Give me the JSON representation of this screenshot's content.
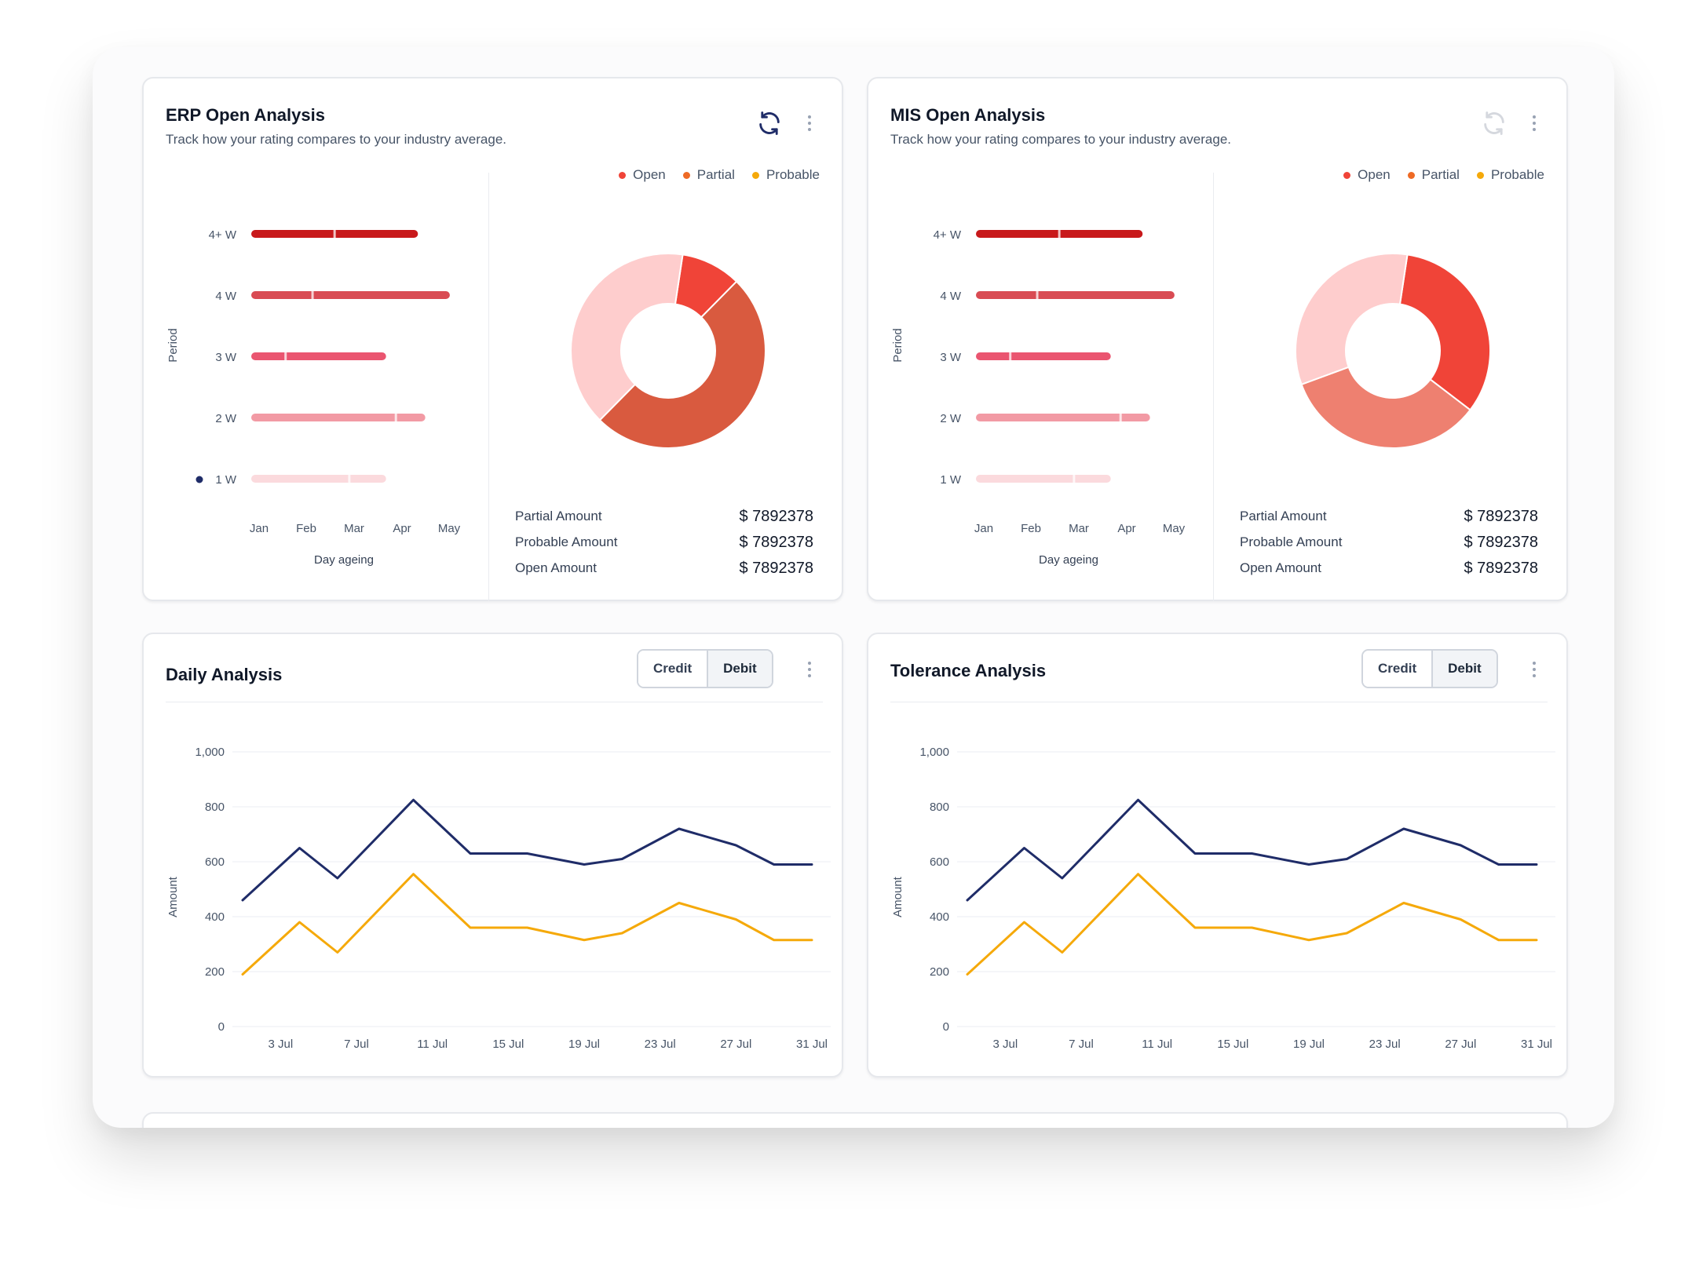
{
  "colors": {
    "open": "#f04438",
    "partial": "#ee6a25",
    "probable": "#f5a90a",
    "navy": "#1f2c68",
    "orange_line": "#f5a90a"
  },
  "erp": {
    "title": "ERP Open Analysis",
    "subtitle": "Track how your rating compares to your industry average.",
    "icons": {
      "refresh": "refresh-icon",
      "menu": "more-vertical-icon"
    },
    "legend": [
      {
        "label": "Open",
        "color": "#f04438"
      },
      {
        "label": "Partial",
        "color": "#ee6a25"
      },
      {
        "label": "Probable",
        "color": "#f5a90a"
      }
    ],
    "amounts": [
      {
        "label": "Partial Amount",
        "value": "$ 7892378"
      },
      {
        "label": "Probable Amount",
        "value": "$ 7892378"
      },
      {
        "label": "Open Amount",
        "value": "$ 7892378"
      }
    ]
  },
  "mis": {
    "title": "MIS Open Analysis",
    "subtitle": "Track how your rating compares to your industry average.",
    "icons": {
      "refresh": "refresh-icon",
      "menu": "more-vertical-icon"
    },
    "legend": [
      {
        "label": "Open",
        "color": "#f04438"
      },
      {
        "label": "Partial",
        "color": "#ee6a25"
      },
      {
        "label": "Probable",
        "color": "#f5a90a"
      }
    ],
    "amounts": [
      {
        "label": "Partial Amount",
        "value": "$ 7892378"
      },
      {
        "label": "Probable Amount",
        "value": "$ 7892378"
      },
      {
        "label": "Open Amount",
        "value": "$ 7892378"
      }
    ]
  },
  "daily": {
    "title": "Daily Analysis",
    "credit_label": "Credit",
    "debit_label": "Debit"
  },
  "tolerance": {
    "title": "Tolerance Analysis",
    "credit_label": "Credit",
    "debit_label": "Debit"
  },
  "chart_data": [
    {
      "chart": "erp-period-bars",
      "type": "bar",
      "orientation": "horizontal",
      "ylabel": "Period",
      "xlabel": "Day ageing",
      "categories": [
        "4+ W",
        "4 W",
        "3 W",
        "2 W",
        "1 W"
      ],
      "x_ticks": [
        "Jan",
        "Feb",
        "Mar",
        "Apr",
        "May"
      ],
      "xlim": [
        0,
        4.5
      ],
      "series": [
        {
          "values": [
            3.4,
            4.05,
            2.75,
            3.55,
            2.75
          ],
          "markers": [
            1.7,
            1.25,
            0.7,
            2.95,
            2.0
          ],
          "colors": [
            "#c8191b",
            "#d94b53",
            "#ea5570",
            "#f29aa4",
            "#fbdadd"
          ]
        }
      ],
      "selected_marker": "1 W"
    },
    {
      "chart": "erp-donut",
      "type": "pie",
      "donut": true,
      "labels": [
        "Open",
        "Partial",
        "Probable"
      ],
      "values": [
        10,
        50,
        40
      ],
      "colors": [
        "#f04438",
        "#d95a3f",
        "#fecdcd"
      ]
    },
    {
      "chart": "mis-period-bars",
      "type": "bar",
      "orientation": "horizontal",
      "ylabel": "Period",
      "xlabel": "Day ageing",
      "categories": [
        "4+ W",
        "4 W",
        "3 W",
        "2 W",
        "1 W"
      ],
      "x_ticks": [
        "Jan",
        "Feb",
        "Mar",
        "Apr",
        "May"
      ],
      "xlim": [
        0,
        4.5
      ],
      "series": [
        {
          "values": [
            3.4,
            4.05,
            2.75,
            3.55,
            2.75
          ],
          "markers": [
            1.7,
            1.25,
            0.7,
            2.95,
            2.0
          ],
          "colors": [
            "#c8191b",
            "#d94b53",
            "#ea5570",
            "#f29aa4",
            "#fbdadd"
          ]
        }
      ]
    },
    {
      "chart": "mis-donut",
      "type": "pie",
      "donut": true,
      "labels": [
        "Open",
        "Partial",
        "Probable"
      ],
      "values": [
        33,
        34,
        33
      ],
      "colors": [
        "#f04438",
        "#ee8070",
        "#fecdcd"
      ]
    },
    {
      "chart": "daily-line",
      "type": "line",
      "ylabel": "Amount",
      "ylim": [
        0,
        1000
      ],
      "y_ticks": [
        0,
        200,
        400,
        600,
        800,
        1000
      ],
      "x_ticks": [
        "3 Jul",
        "7 Jul",
        "11 Jul",
        "15 Jul",
        "19 Jul",
        "23 Jul",
        "27 Jul",
        "31 Jul"
      ],
      "x": [
        "1 Jul",
        "4 Jul",
        "6 Jul",
        "10 Jul",
        "13 Jul",
        "16 Jul",
        "19 Jul",
        "21 Jul",
        "24 Jul",
        "27 Jul",
        "29 Jul",
        "31 Jul"
      ],
      "series": [
        {
          "color": "#1f2c68",
          "values": [
            460,
            650,
            540,
            825,
            630,
            630,
            590,
            610,
            720,
            660,
            590,
            590
          ]
        },
        {
          "color": "#f5a90a",
          "values": [
            190,
            380,
            270,
            555,
            360,
            360,
            315,
            340,
            450,
            390,
            315,
            315
          ]
        }
      ]
    },
    {
      "chart": "tolerance-line",
      "type": "line",
      "ylabel": "Amount",
      "ylim": [
        0,
        1000
      ],
      "y_ticks": [
        0,
        200,
        400,
        600,
        800,
        1000
      ],
      "x_ticks": [
        "3 Jul",
        "7 Jul",
        "11 Jul",
        "15 Jul",
        "19 Jul",
        "23 Jul",
        "27 Jul",
        "31 Jul"
      ],
      "x": [
        "1 Jul",
        "4 Jul",
        "6 Jul",
        "10 Jul",
        "13 Jul",
        "16 Jul",
        "19 Jul",
        "21 Jul",
        "24 Jul",
        "27 Jul",
        "29 Jul",
        "31 Jul"
      ],
      "series": [
        {
          "color": "#1f2c68",
          "values": [
            460,
            650,
            540,
            825,
            630,
            630,
            590,
            610,
            720,
            660,
            590,
            590
          ]
        },
        {
          "color": "#f5a90a",
          "values": [
            190,
            380,
            270,
            555,
            360,
            360,
            315,
            340,
            450,
            390,
            315,
            315
          ]
        }
      ]
    }
  ]
}
